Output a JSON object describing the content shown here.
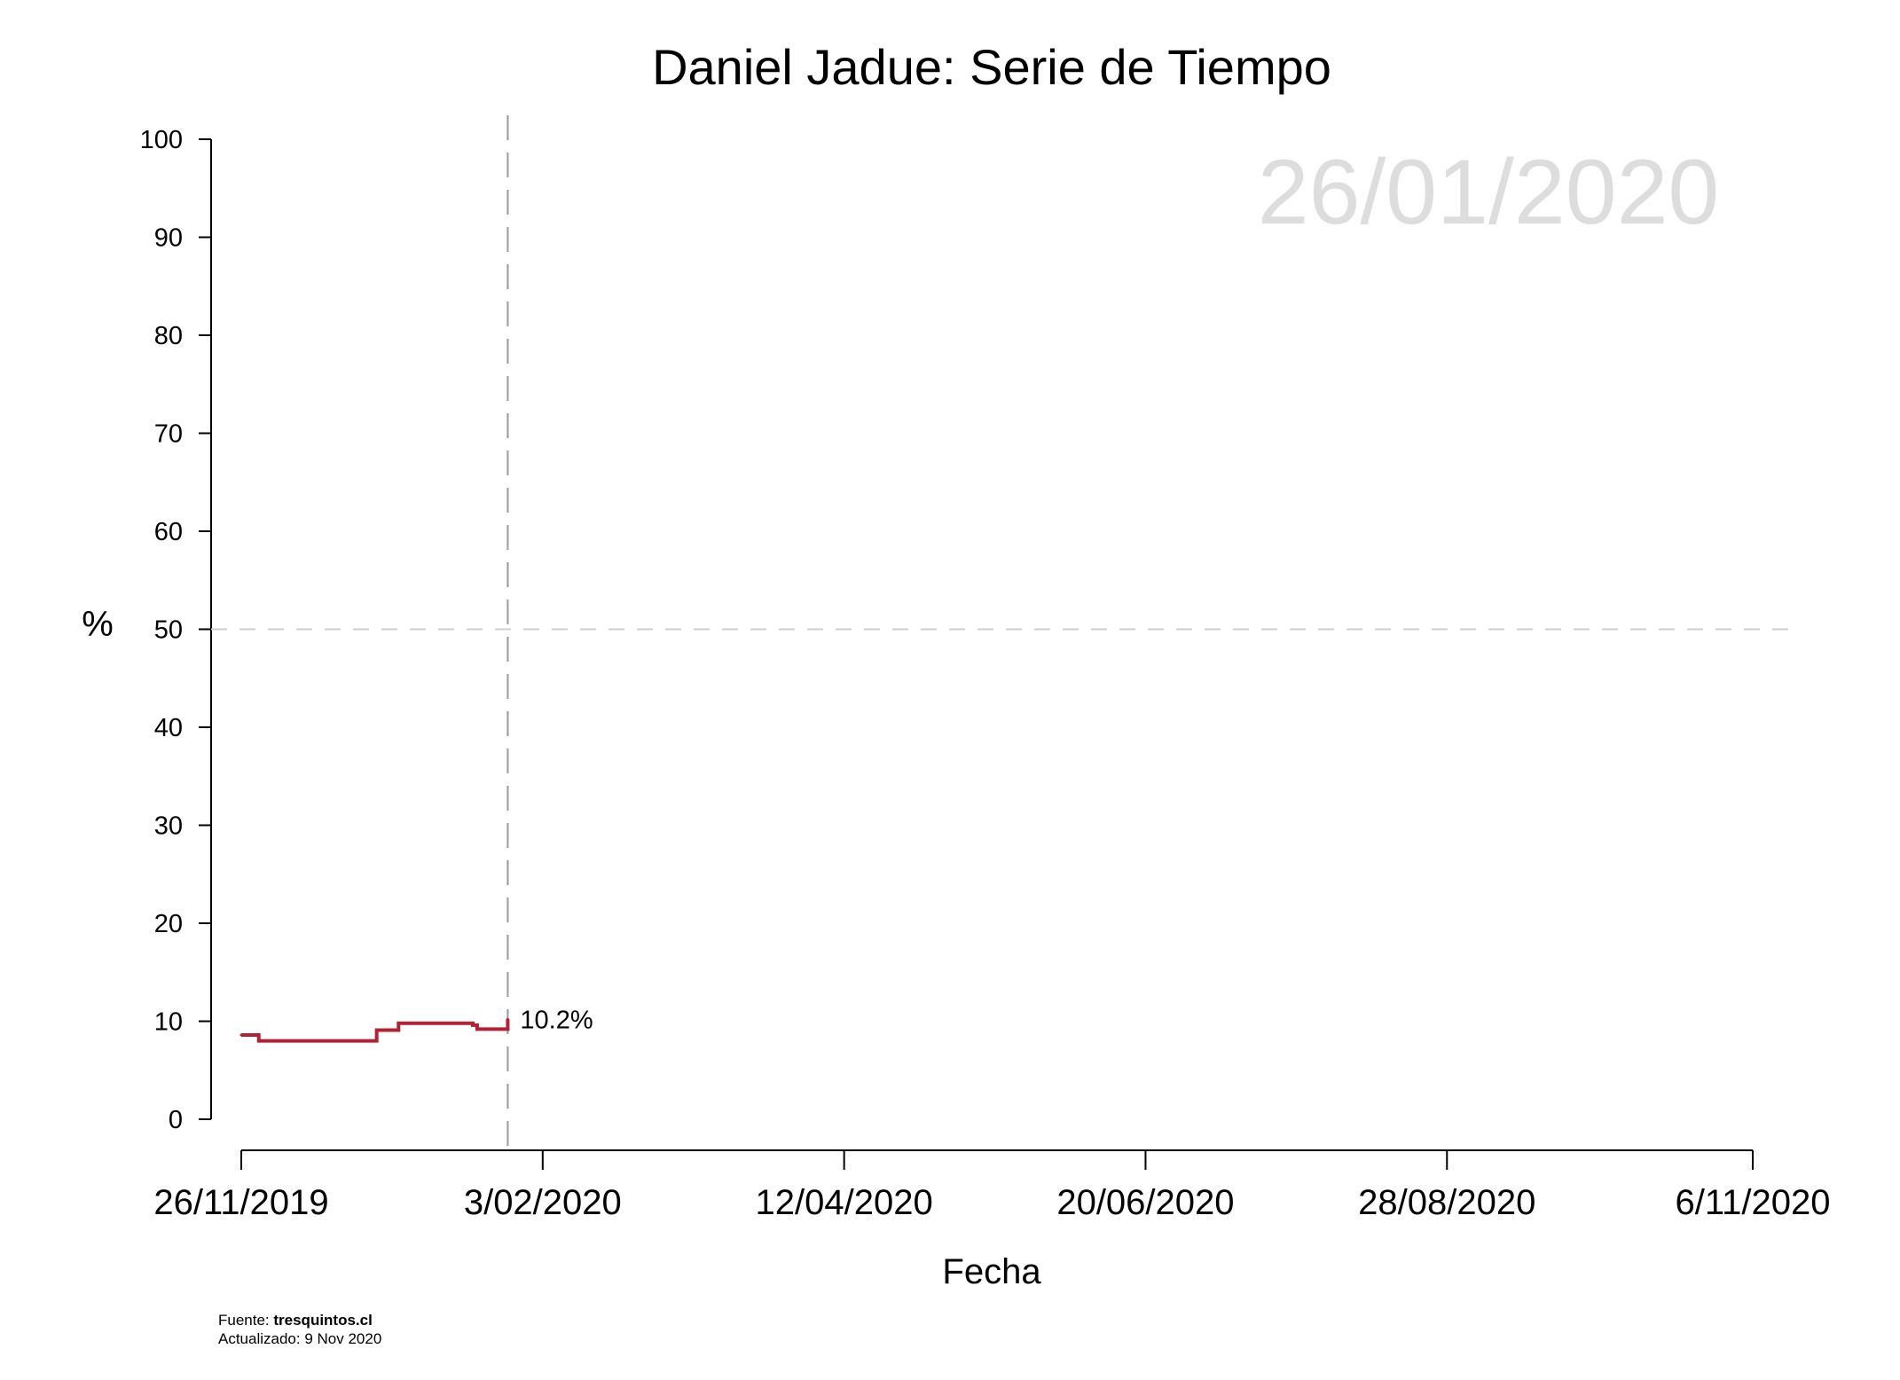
{
  "chart_data": {
    "type": "line",
    "title": "Daniel Jadue: Serie de Tiempo",
    "xlabel": "Fecha",
    "ylabel": "%",
    "ylim": [
      0,
      100
    ],
    "yticks": [
      0,
      10,
      20,
      30,
      40,
      50,
      60,
      70,
      80,
      90,
      100
    ],
    "xlim": [
      "2019-11-26",
      "2020-11-06"
    ],
    "xticks": [
      "2019-11-26",
      "2020-02-03",
      "2020-04-12",
      "2020-06-20",
      "2020-08-28",
      "2020-11-06"
    ],
    "xtick_labels": [
      "26/11/2019",
      "3/02/2020",
      "12/04/2020",
      "20/06/2020",
      "28/08/2020",
      "6/11/2020"
    ],
    "reference_line_y": 50,
    "current_date": "2020-01-26",
    "current_date_label": "26/01/2020",
    "end_label": "10.2%",
    "step": true,
    "grid": false,
    "series": [
      {
        "color": "#b22234",
        "x": [
          "2019-11-26",
          "2019-11-30",
          "2019-12-20",
          "2019-12-27",
          "2020-01-01",
          "2020-01-18",
          "2020-01-19",
          "2020-01-26"
        ],
        "y": [
          8.6,
          8.0,
          8.0,
          9.1,
          9.8,
          9.6,
          9.2,
          10.2
        ]
      }
    ]
  },
  "footer": {
    "source_prefix": "Fuente: ",
    "source_site": "tresquintos.cl",
    "updated": "Actualizado: 9 Nov 2020"
  },
  "colors": {
    "series": "#b22234",
    "reference_line": "#cccccc",
    "current_date_line": "#999999",
    "watermark": "#dddddd"
  }
}
